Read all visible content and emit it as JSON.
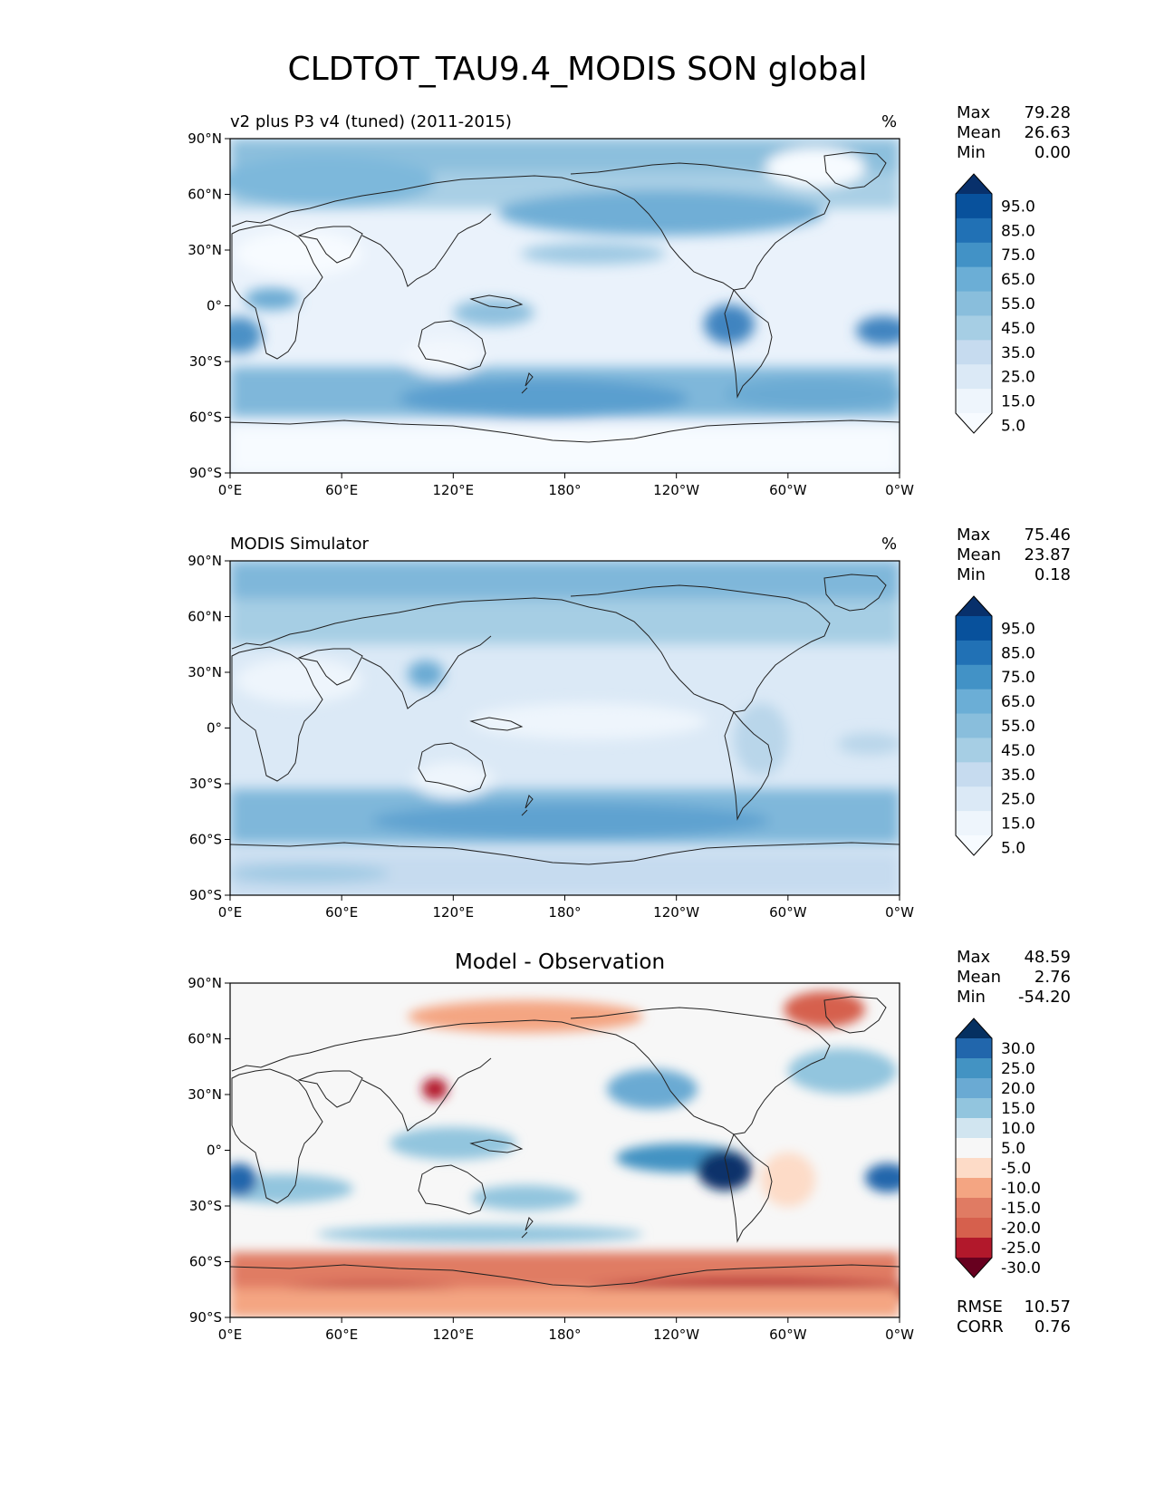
{
  "title": "CLDTOT_TAU9.4_MODIS SON global",
  "axes": {
    "lat_labels": [
      "90°N",
      "60°N",
      "30°N",
      "0°",
      "30°S",
      "60°S",
      "90°S"
    ],
    "lon_labels": [
      "0°E",
      "60°E",
      "120°E",
      "180°",
      "120°W",
      "60°W",
      "0°W"
    ]
  },
  "panels": [
    {
      "name": "model",
      "subtitle": "v2 plus P3 v4 (tuned) (2011-2015)",
      "units": "%",
      "stats": [
        {
          "label": "Max",
          "value": "79.28"
        },
        {
          "label": "Mean",
          "value": "26.63"
        },
        {
          "label": "Min",
          "value": "0.00"
        }
      ],
      "colorbar": {
        "labels": [
          "95.0",
          "85.0",
          "75.0",
          "65.0",
          "55.0",
          "45.0",
          "35.0",
          "25.0",
          "15.0",
          "5.0"
        ],
        "colors": [
          "#08306b",
          "#08519c",
          "#2171b5",
          "#4292c6",
          "#6baed6",
          "#89bedc",
          "#a6cee4",
          "#c6dbef",
          "#dbe9f6",
          "#eef5fc",
          "#f7fbff"
        ]
      }
    },
    {
      "name": "observation",
      "subtitle": "MODIS Simulator",
      "units": "%",
      "stats": [
        {
          "label": "Max",
          "value": "75.46"
        },
        {
          "label": "Mean",
          "value": "23.87"
        },
        {
          "label": "Min",
          "value": "0.18"
        }
      ],
      "colorbar": {
        "labels": [
          "95.0",
          "85.0",
          "75.0",
          "65.0",
          "55.0",
          "45.0",
          "35.0",
          "25.0",
          "15.0",
          "5.0"
        ],
        "colors": [
          "#08306b",
          "#08519c",
          "#2171b5",
          "#4292c6",
          "#6baed6",
          "#89bedc",
          "#a6cee4",
          "#c6dbef",
          "#dbe9f6",
          "#eef5fc",
          "#f7fbff"
        ]
      }
    },
    {
      "name": "difference",
      "title": "Model - Observation",
      "stats": [
        {
          "label": "Max",
          "value": "48.59"
        },
        {
          "label": "Mean",
          "value": "2.76"
        },
        {
          "label": "Min",
          "value": "-54.20"
        }
      ],
      "colorbar": {
        "labels": [
          "30.0",
          "25.0",
          "20.0",
          "15.0",
          "10.0",
          "5.0",
          "-5.0",
          "-10.0",
          "-15.0",
          "-20.0",
          "-25.0",
          "-30.0"
        ],
        "colors": [
          "#053061",
          "#2166ac",
          "#4393c3",
          "#6aaad3",
          "#92c5de",
          "#d1e5f0",
          "#f7f7f7",
          "#fddbc7",
          "#f4a582",
          "#e07b63",
          "#d6604d",
          "#b2182b",
          "#67001f"
        ]
      },
      "metrics": [
        {
          "label": "RMSE",
          "value": "10.57"
        },
        {
          "label": "CORR",
          "value": "0.76"
        }
      ]
    }
  ]
}
